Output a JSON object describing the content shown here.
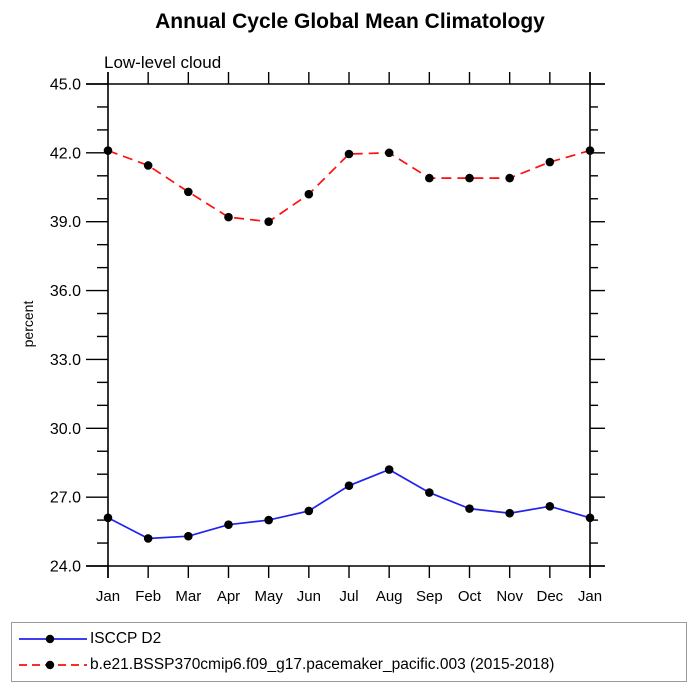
{
  "chart_data": {
    "type": "line",
    "title": "Annual Cycle Global Mean Climatology",
    "subtitle": "Low-level cloud",
    "ylabel": "percent",
    "xlabel": "",
    "categories": [
      "Jan",
      "Feb",
      "Mar",
      "Apr",
      "May",
      "Jun",
      "Jul",
      "Aug",
      "Sep",
      "Oct",
      "Nov",
      "Dec",
      "Jan"
    ],
    "ylim": [
      24.0,
      45.0
    ],
    "ytick_major_step": 3.0,
    "ytick_minor_step": 1.0,
    "ytick_labels": [
      "24.0",
      "27.0",
      "30.0",
      "33.0",
      "36.0",
      "39.0",
      "42.0",
      "45.0"
    ],
    "grid": false,
    "legend_position": "bottom",
    "axis_color": "#000000",
    "marker": "filled-circle",
    "marker_color": "#000000",
    "series": [
      {
        "name": "ISCCP D2",
        "color": "#2222ee",
        "line_style": "solid",
        "values": [
          26.1,
          25.2,
          25.3,
          25.8,
          26.0,
          26.4,
          27.5,
          28.2,
          27.2,
          26.5,
          26.3,
          26.6,
          26.1
        ]
      },
      {
        "name": "b.e21.BSSP370cmip6.f09_g17.pacemaker_pacific.003 (2015-2018)",
        "color": "#fb0f0f",
        "line_style": "dashed",
        "values": [
          42.1,
          41.45,
          40.3,
          39.2,
          39.0,
          40.2,
          41.95,
          42.0,
          40.9,
          40.9,
          40.9,
          41.6,
          42.1
        ]
      }
    ]
  }
}
